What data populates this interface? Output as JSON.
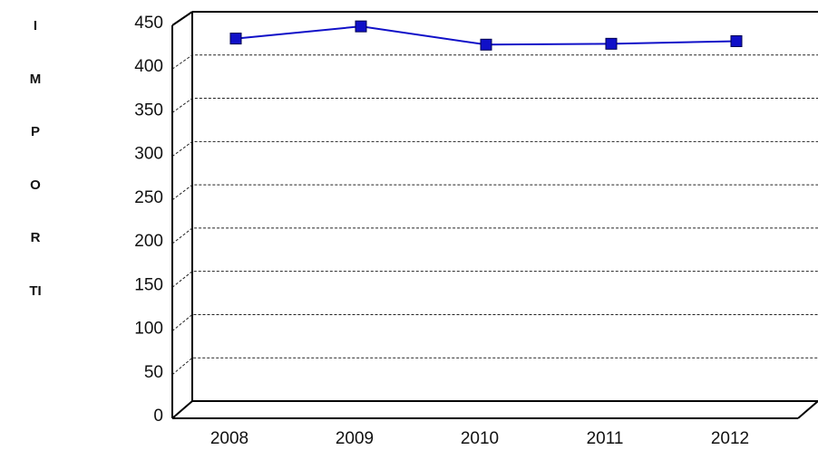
{
  "chart_data": {
    "type": "line",
    "y_label": "IMPORTI",
    "categories": [
      "2008",
      "2009",
      "2010",
      "2011",
      "2012"
    ],
    "series": [
      {
        "name": null,
        "color": "#1010c8",
        "values": [
          427,
          441,
          420,
          421,
          424
        ]
      }
    ],
    "ylim": [
      0,
      450
    ],
    "yticks": [
      0,
      50,
      100,
      150,
      200,
      250,
      300,
      350,
      400,
      450
    ],
    "grid": true
  }
}
